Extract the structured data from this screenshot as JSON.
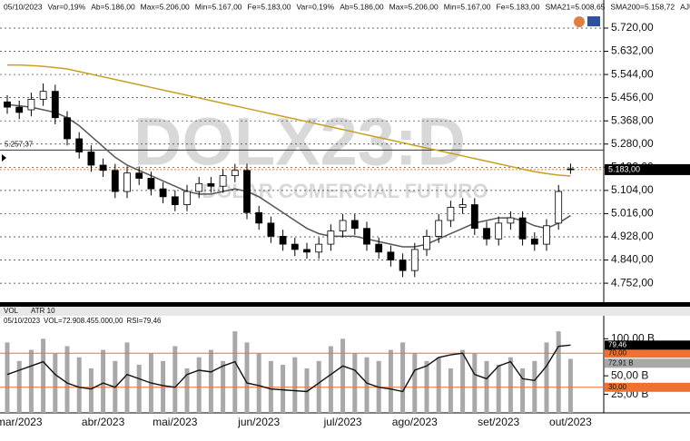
{
  "chart_data": [
    {
      "type": "candlestick",
      "info": [
        "05/10/2023",
        "Var=0,19%",
        "Ab=5.186,00",
        "Max=5.206,00",
        "Min=5.167,00",
        "Fe=5.183,00",
        "Var=0,19%",
        "Ab=5.186,00",
        "Max=5.206,00",
        "Min=5.167,00",
        "Fe=5.183,00",
        "SMA21=5.008,65",
        "SMA200=5.158,72",
        "AJU=5.187,34",
        "AJU=5.18"
      ],
      "watermark": "DOLX23:D",
      "watermark_subtitle": "DÓLAR COMERCIAL FUTURO",
      "categories": [
        null,
        "mar/2023",
        null,
        null,
        null,
        null,
        null,
        null,
        "abr/2023",
        null,
        null,
        null,
        null,
        null,
        "mai/2023",
        null,
        null,
        null,
        null,
        null,
        null,
        "jun/2023",
        null,
        null,
        null,
        null,
        null,
        null,
        "jul/2023",
        null,
        null,
        null,
        null,
        null,
        "ago/2023",
        null,
        null,
        null,
        null,
        null,
        null,
        "set/2023",
        null,
        null,
        null,
        null,
        null,
        "out/2023"
      ],
      "open": [
        5440,
        5420,
        5410,
        5450,
        5480,
        5380,
        5300,
        5250,
        5200,
        5180,
        5100,
        5170,
        5150,
        5110,
        5080,
        5050,
        5100,
        5130,
        5120,
        5160,
        5180,
        5020,
        4980,
        4930,
        4900,
        4880,
        4870,
        4900,
        4950,
        4990,
        4960,
        4900,
        4870,
        4840,
        4800,
        4880,
        4930,
        4990,
        5040,
        5050,
        4960,
        4920,
        4980,
        5000,
        4920,
        4900,
        4980,
        5186
      ],
      "high": [
        5465,
        5445,
        5475,
        5510,
        5505,
        5405,
        5325,
        5275,
        5225,
        5205,
        5195,
        5195,
        5175,
        5135,
        5105,
        5125,
        5155,
        5155,
        5185,
        5205,
        5205,
        5045,
        5005,
        4955,
        4925,
        4905,
        4925,
        4975,
        5015,
        5015,
        4985,
        4925,
        4895,
        4865,
        4905,
        4955,
        5015,
        5065,
        5075,
        5075,
        4985,
        5005,
        5025,
        5025,
        4945,
        4995,
        5125,
        5206
      ],
      "low": [
        5395,
        5375,
        5385,
        5425,
        5355,
        5275,
        5225,
        5175,
        5155,
        5075,
        5075,
        5125,
        5085,
        5055,
        5025,
        5025,
        5075,
        5095,
        5095,
        5135,
        4995,
        4955,
        4905,
        4875,
        4855,
        4845,
        4845,
        4875,
        4925,
        4935,
        4875,
        4845,
        4815,
        4775,
        4775,
        4855,
        4905,
        4965,
        5015,
        4935,
        4895,
        4895,
        4955,
        4895,
        4875,
        4875,
        4955,
        5167
      ],
      "close": [
        5420,
        5400,
        5450,
        5480,
        5380,
        5300,
        5250,
        5200,
        5180,
        5100,
        5170,
        5150,
        5110,
        5080,
        5050,
        5100,
        5130,
        5120,
        5160,
        5180,
        5020,
        4980,
        4930,
        4900,
        4880,
        4870,
        4900,
        4950,
        4990,
        4960,
        4900,
        4870,
        4840,
        4800,
        4880,
        4930,
        4990,
        5040,
        5050,
        4960,
        4920,
        4980,
        5000,
        4920,
        4900,
        4970,
        5100,
        5183
      ],
      "up_color": "#ffffff",
      "down_color": "#000000",
      "sma21": {
        "color": "#555555",
        "values": [
          5430,
          5425,
          5420,
          5410,
          5400,
          5380,
          5350,
          5310,
          5270,
          5230,
          5200,
          5180,
          5160,
          5140,
          5120,
          5100,
          5090,
          5090,
          5100,
          5110,
          5100,
          5080,
          5050,
          5020,
          4990,
          4960,
          4940,
          4930,
          4930,
          4930,
          4920,
          4910,
          4900,
          4890,
          4890,
          4900,
          4920,
          4940,
          4960,
          4980,
          4990,
          5000,
          5000,
          4990,
          4970,
          4960,
          4980,
          5008.65
        ]
      },
      "sma200": {
        "color": "#c8a020",
        "values": [
          5580,
          5580,
          5578,
          5575,
          5570,
          5565,
          5555,
          5545,
          5535,
          5525,
          5515,
          5505,
          5495,
          5485,
          5475,
          5465,
          5455,
          5445,
          5435,
          5425,
          5415,
          5405,
          5395,
          5385,
          5375,
          5365,
          5355,
          5345,
          5335,
          5325,
          5315,
          5305,
          5295,
          5285,
          5275,
          5265,
          5255,
          5245,
          5235,
          5225,
          5215,
          5205,
          5195,
          5185,
          5175,
          5168,
          5162,
          5158.72
        ]
      },
      "ylim": [
        4680,
        5775
      ],
      "yticks": [
        {
          "value": 4752,
          "label": "4.752,00"
        },
        {
          "value": 4840,
          "label": "4.840,00"
        },
        {
          "value": 4928,
          "label": "4.928,00"
        },
        {
          "value": 5016,
          "label": "5.016,00"
        },
        {
          "value": 5104,
          "label": "5.104,00"
        },
        {
          "value": 5192,
          "label": "5.192,00"
        },
        {
          "value": 5280,
          "label": "5.280,00"
        },
        {
          "value": 5368,
          "label": "5.368,00"
        },
        {
          "value": 5456,
          "label": "5.456,00"
        },
        {
          "value": 5544,
          "label": "5.544,00"
        },
        {
          "value": 5632,
          "label": "5.632,00"
        },
        {
          "value": 5720,
          "label": "5.720,00"
        }
      ],
      "reference_line": {
        "value": 5257.37,
        "label": "5.257,37"
      },
      "last_price": {
        "value": 5183,
        "label": "5.183,00",
        "color": "#f08020"
      }
    },
    {
      "type": "bar",
      "tabs": [
        "VOL",
        "ATR 10"
      ],
      "info": [
        "05/10/2023",
        "VOL=72.908.455.000,00",
        "RSI=79,46"
      ],
      "series": [
        {
          "name": "VOL",
          "color": "#a8a8a8",
          "values": [
            95,
            70,
            85,
            100,
            80,
            90,
            75,
            60,
            85,
            70,
            95,
            65,
            80,
            70,
            90,
            60,
            75,
            85,
            70,
            110,
            95,
            80,
            70,
            65,
            75,
            60,
            70,
            90,
            100,
            80,
            75,
            70,
            85,
            95,
            80,
            70,
            75,
            60,
            85,
            80,
            70,
            65,
            75,
            60,
            70,
            95,
            110,
            72.91
          ],
          "last_label": "72,91 B"
        },
        {
          "name": "RSI",
          "color": "#111111",
          "axis": "y2",
          "values": [
            45,
            50,
            55,
            60,
            45,
            35,
            30,
            28,
            35,
            30,
            45,
            40,
            35,
            32,
            30,
            45,
            50,
            48,
            55,
            60,
            35,
            32,
            28,
            27,
            26,
            25,
            35,
            45,
            55,
            50,
            35,
            30,
            28,
            25,
            50,
            55,
            65,
            68,
            70,
            45,
            40,
            55,
            60,
            40,
            38,
            55,
            78,
            79.46
          ],
          "last_label": "79,46"
        }
      ],
      "ylim": [
        0,
        131
      ],
      "yticks": [
        {
          "value": 25,
          "label": "25,00 B"
        },
        {
          "value": 50,
          "label": "50,00 B"
        },
        {
          "value": 100,
          "label": "100,00 B"
        }
      ],
      "y2lim": [
        0,
        100
      ],
      "y2ticks": [
        {
          "value": 30,
          "label": "30,00"
        },
        {
          "value": 70,
          "label": "70,00"
        }
      ],
      "level_color": "#f07030"
    }
  ]
}
